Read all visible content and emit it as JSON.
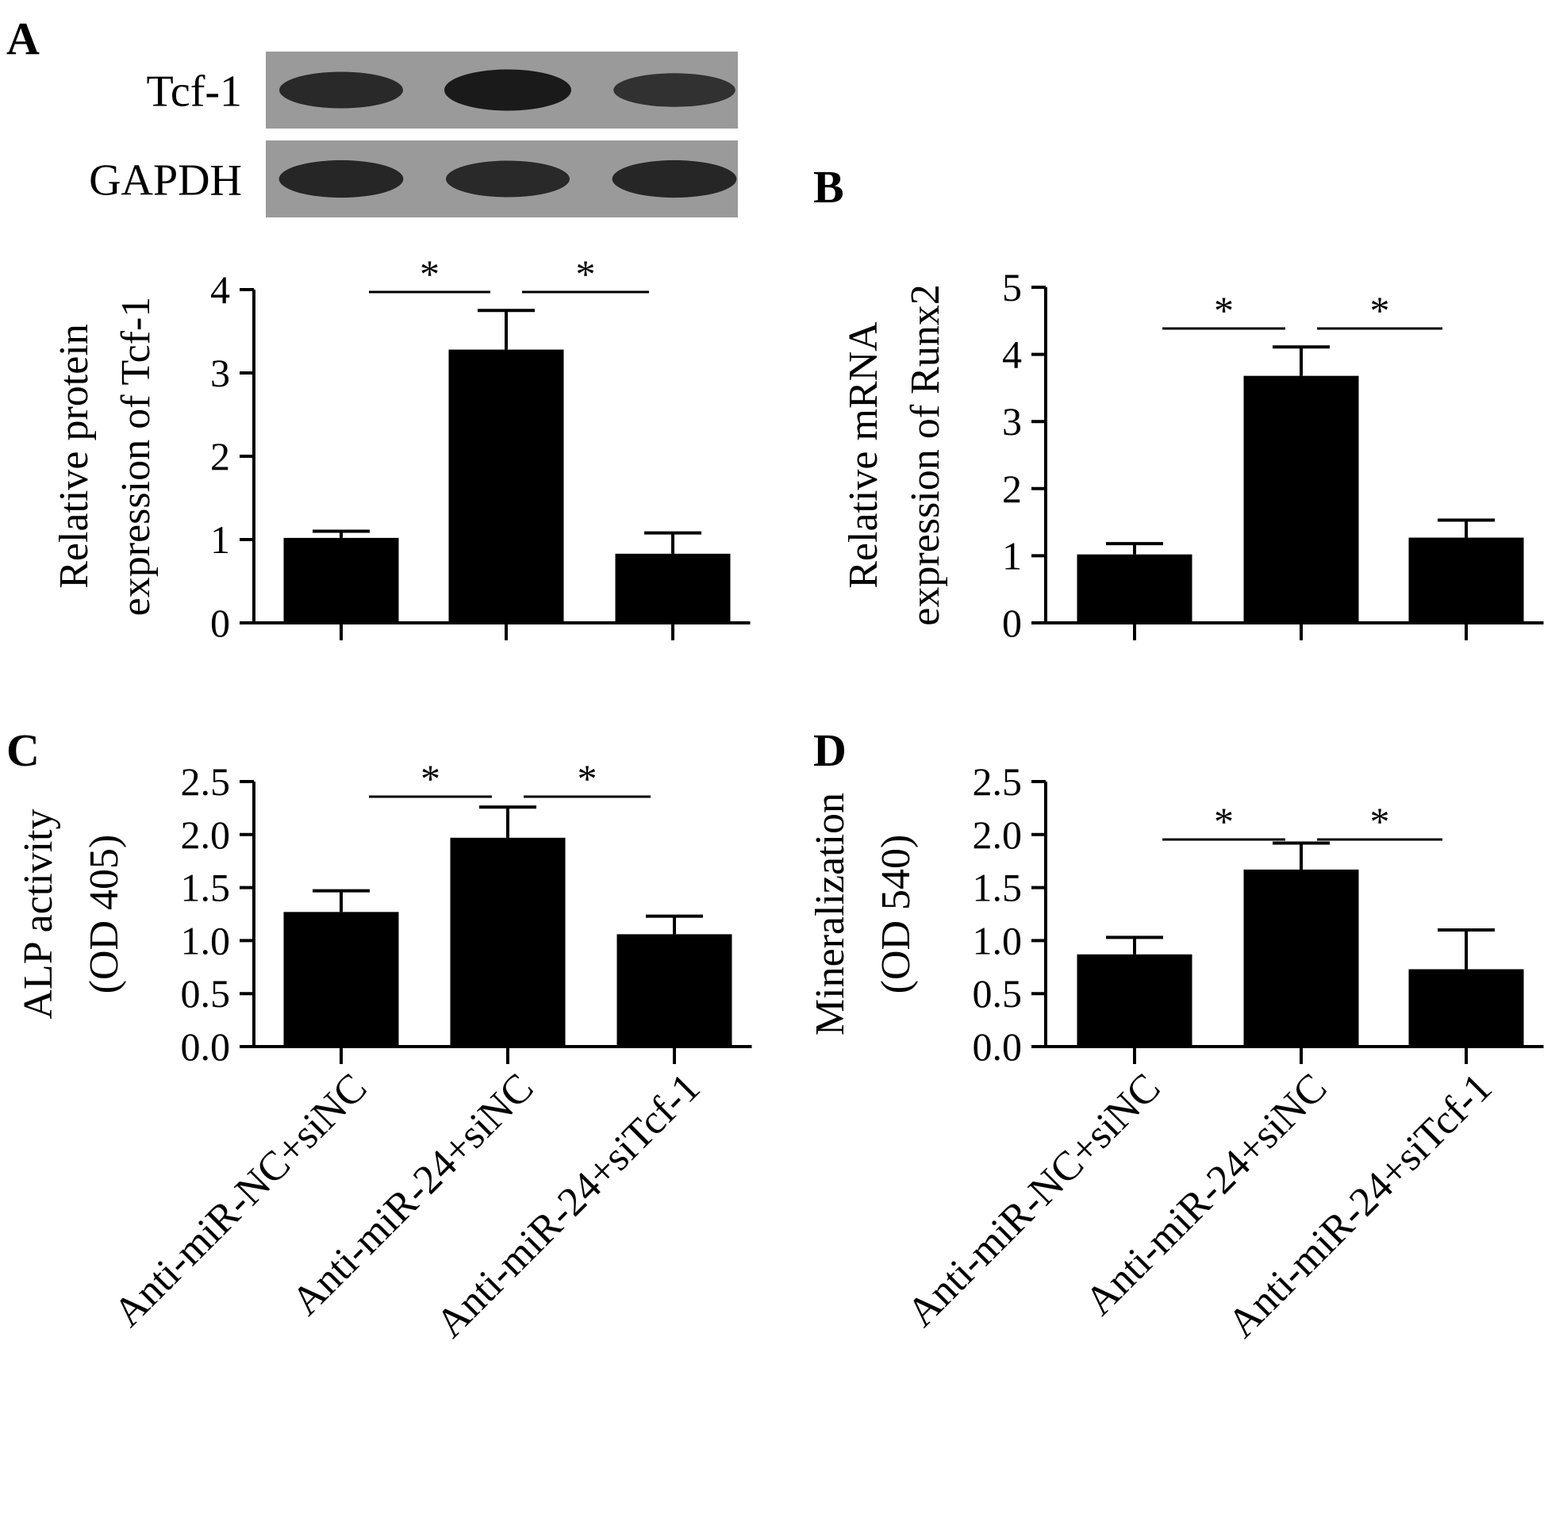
{
  "blot": {
    "panel_label": "A",
    "rows": [
      {
        "label": "Tcf-1",
        "intensities": [
          0.75,
          1.0,
          0.6
        ]
      },
      {
        "label": "GAPDH",
        "intensities": [
          0.8,
          0.75,
          0.8
        ]
      }
    ]
  },
  "colors": {
    "bar": "#000000",
    "band": "#1a1a1a",
    "blot_bg": "#9a9a9a"
  },
  "chart_data": [
    {
      "panel_label": "A",
      "type": "bar",
      "categories": [
        "Anti-miR-NC+siNC",
        "Anti-miR-24+siNC",
        "Anti-miR-24+siTcf-1"
      ],
      "values": [
        1.02,
        3.28,
        0.83
      ],
      "errors": [
        0.08,
        0.47,
        0.25
      ],
      "ylabel": [
        "Relative protein",
        "expression of Tcf-1"
      ],
      "ylim": [
        0,
        4
      ],
      "yticks": [
        "0",
        "1",
        "2",
        "3",
        "4"
      ],
      "significance": [
        {
          "from": 0,
          "to": 1,
          "label": "*"
        },
        {
          "from": 1,
          "to": 2,
          "label": "*"
        }
      ]
    },
    {
      "panel_label": "B",
      "type": "bar",
      "categories": [
        "Anti-miR-NC+siNC",
        "Anti-miR-24+siNC",
        "Anti-miR-24+siTcf-1"
      ],
      "values": [
        1.02,
        3.68,
        1.27
      ],
      "errors": [
        0.16,
        0.43,
        0.26
      ],
      "ylabel": [
        "Relative mRNA",
        "expression of Runx2"
      ],
      "ylim": [
        0,
        5
      ],
      "yticks": [
        "0",
        "1",
        "2",
        "3",
        "4",
        "5"
      ],
      "significance": [
        {
          "from": 0,
          "to": 1,
          "label": "*"
        },
        {
          "from": 1,
          "to": 2,
          "label": "*"
        }
      ]
    },
    {
      "panel_label": "C",
      "type": "bar",
      "categories": [
        "Anti-miR-NC+siNC",
        "Anti-miR-24+siNC",
        "Anti-miR-24+siTcf-1"
      ],
      "values": [
        1.27,
        1.97,
        1.06
      ],
      "errors": [
        0.2,
        0.29,
        0.17
      ],
      "ylabel": [
        "ALP activity",
        "(OD 405)"
      ],
      "ylim": [
        0,
        2.5
      ],
      "yticks": [
        "0.0",
        "0.5",
        "1.0",
        "1.5",
        "2.0",
        "2.5"
      ],
      "significance": [
        {
          "from": 0,
          "to": 1,
          "label": "*"
        },
        {
          "from": 1,
          "to": 2,
          "label": "*"
        }
      ]
    },
    {
      "panel_label": "D",
      "type": "bar",
      "categories": [
        "Anti-miR-NC+siNC",
        "Anti-miR-24+siNC",
        "Anti-miR-24+siTcf-1"
      ],
      "values": [
        0.87,
        1.67,
        0.73
      ],
      "errors": [
        0.16,
        0.25,
        0.37
      ],
      "ylabel": [
        "Mineralization",
        "(OD 540)"
      ],
      "ylim": [
        0,
        2.5
      ],
      "yticks": [
        "0.0",
        "0.5",
        "1.0",
        "1.5",
        "2.0",
        "2.5"
      ],
      "significance": [
        {
          "from": 0,
          "to": 1,
          "label": "*"
        },
        {
          "from": 1,
          "to": 2,
          "label": "*"
        }
      ]
    }
  ]
}
